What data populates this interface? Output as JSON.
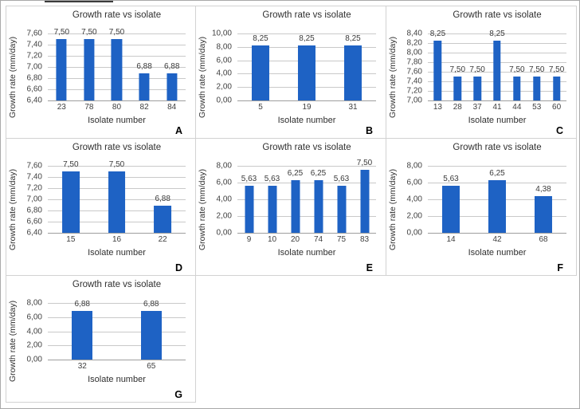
{
  "colors": {
    "bar": "#1e62c4",
    "gridline": "#c9c9c9",
    "axis_line": "#9e9e9e",
    "text": "#2f2f2f",
    "tick_text": "#404040",
    "panel_border": "#d2d2d2",
    "outer_border": "#a9a9a9"
  },
  "chart_data": [
    {
      "type": "bar",
      "letter": "A",
      "title": "Growth rate vs isolate",
      "xlabel": "Isolate number",
      "ylabel": "Growth rate (mm/day)",
      "categories": [
        "23",
        "78",
        "80",
        "82",
        "84"
      ],
      "values": [
        7.5,
        7.5,
        7.5,
        6.88,
        6.88
      ],
      "value_labels": [
        "7,50",
        "7,50",
        "7,50",
        "6,88",
        "6,88"
      ],
      "ymin": 6.4,
      "ymax": 7.6,
      "yticks": [
        "7,60",
        "7,40",
        "7,20",
        "7,00",
        "6,80",
        "6,60",
        "6,40"
      ],
      "grid": true,
      "legend": "none"
    },
    {
      "type": "bar",
      "letter": "B",
      "title": "Growth rate vs isolate",
      "xlabel": "Isolate number",
      "ylabel": "Growth rate (mm/day)",
      "categories": [
        "5",
        "19",
        "31"
      ],
      "values": [
        8.25,
        8.25,
        8.25
      ],
      "value_labels": [
        "8,25",
        "8,25",
        "8,25"
      ],
      "ymin": 0,
      "ymax": 10,
      "yticks": [
        "10,00",
        "8,00",
        "6,00",
        "4,00",
        "2,00",
        "0,00"
      ],
      "grid": true,
      "legend": "none"
    },
    {
      "type": "bar",
      "letter": "C",
      "title": "Growth rate vs isolate",
      "xlabel": "Isolate number",
      "ylabel": "Growth rate (mm/day)",
      "categories": [
        "13",
        "28",
        "37",
        "41",
        "44",
        "53",
        "60"
      ],
      "values": [
        8.25,
        7.5,
        7.5,
        8.25,
        7.5,
        7.5,
        7.5
      ],
      "value_labels": [
        "8,25",
        "7,50",
        "7,50",
        "8,25",
        "7,50",
        "7,50",
        "7,50"
      ],
      "ymin": 7.0,
      "ymax": 8.4,
      "yticks": [
        "8,40",
        "8,20",
        "8,00",
        "7,80",
        "7,60",
        "7,40",
        "7,20",
        "7,00"
      ],
      "grid": true,
      "legend": "none"
    },
    {
      "type": "bar",
      "letter": "D",
      "title": "Growth rate vs isolate",
      "xlabel": "Isolate number",
      "ylabel": "Growth rate (mm/day)",
      "categories": [
        "15",
        "16",
        "22"
      ],
      "values": [
        7.5,
        7.5,
        6.88
      ],
      "value_labels": [
        "7,50",
        "7,50",
        "6,88"
      ],
      "ymin": 6.4,
      "ymax": 7.6,
      "yticks": [
        "7,60",
        "7,40",
        "7,20",
        "7,00",
        "6,80",
        "6,60",
        "6,40"
      ],
      "grid": true,
      "legend": "none"
    },
    {
      "type": "bar",
      "letter": "E",
      "title": "Growth rate vs isolate",
      "xlabel": "Isolate number",
      "ylabel": "Growth rate (mm/day)",
      "categories": [
        "9",
        "10",
        "20",
        "74",
        "75",
        "83"
      ],
      "values": [
        5.63,
        5.63,
        6.25,
        6.25,
        5.63,
        7.5
      ],
      "value_labels": [
        "5,63",
        "5,63",
        "6,25",
        "6,25",
        "5,63",
        "7,50"
      ],
      "ymin": 0,
      "ymax": 8,
      "yticks": [
        "8,00",
        "6,00",
        "4,00",
        "2,00",
        "0,00"
      ],
      "grid": true,
      "legend": "none"
    },
    {
      "type": "bar",
      "letter": "F",
      "title": "Growth rate vs isolate",
      "xlabel": "Isolate number",
      "ylabel": "Growth rate (mm/day)",
      "categories": [
        "14",
        "42",
        "68"
      ],
      "values": [
        5.63,
        6.25,
        4.38
      ],
      "value_labels": [
        "5,63",
        "6,25",
        "4,38"
      ],
      "ymin": 0,
      "ymax": 8,
      "yticks": [
        "8,00",
        "6,00",
        "4,00",
        "2,00",
        "0,00"
      ],
      "grid": true,
      "legend": "none"
    },
    {
      "type": "bar",
      "letter": "G",
      "title": "Growth rate vs isolate",
      "xlabel": "Isolate number",
      "ylabel": "Growth rate (mm/day)",
      "categories": [
        "32",
        "65"
      ],
      "values": [
        6.88,
        6.88
      ],
      "value_labels": [
        "6,88",
        "6,88"
      ],
      "ymin": 0,
      "ymax": 8,
      "yticks": [
        "8,00",
        "6,00",
        "4,00",
        "2,00",
        "0,00"
      ],
      "grid": true,
      "legend": "none"
    }
  ]
}
